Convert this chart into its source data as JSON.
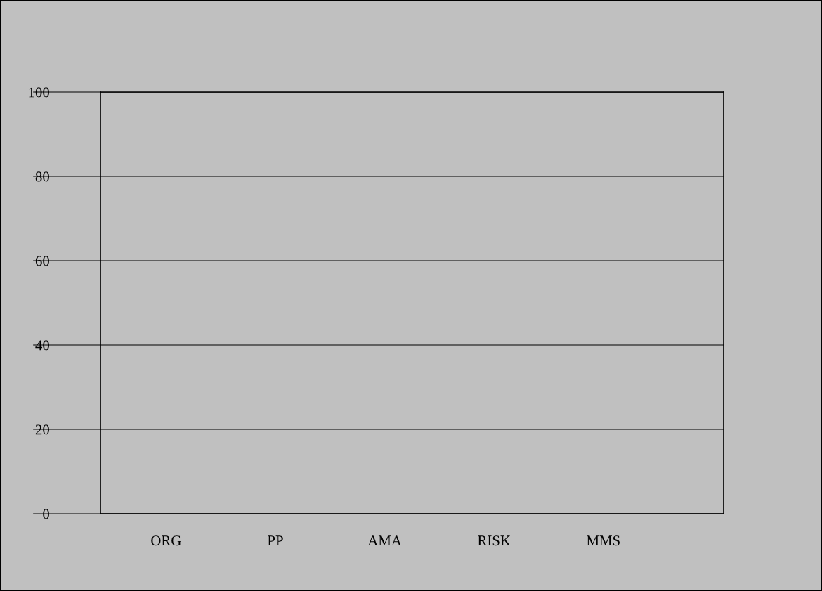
{
  "chart_data": {
    "type": "bar",
    "categories": [
      "ORG",
      "PP",
      "AMA",
      "RISK",
      "MMS"
    ],
    "values": [
      null,
      null,
      null,
      null,
      null
    ],
    "ylim": [
      0,
      100
    ],
    "yticks": [
      0,
      20,
      40,
      60,
      80,
      100
    ],
    "grid": "y"
  }
}
